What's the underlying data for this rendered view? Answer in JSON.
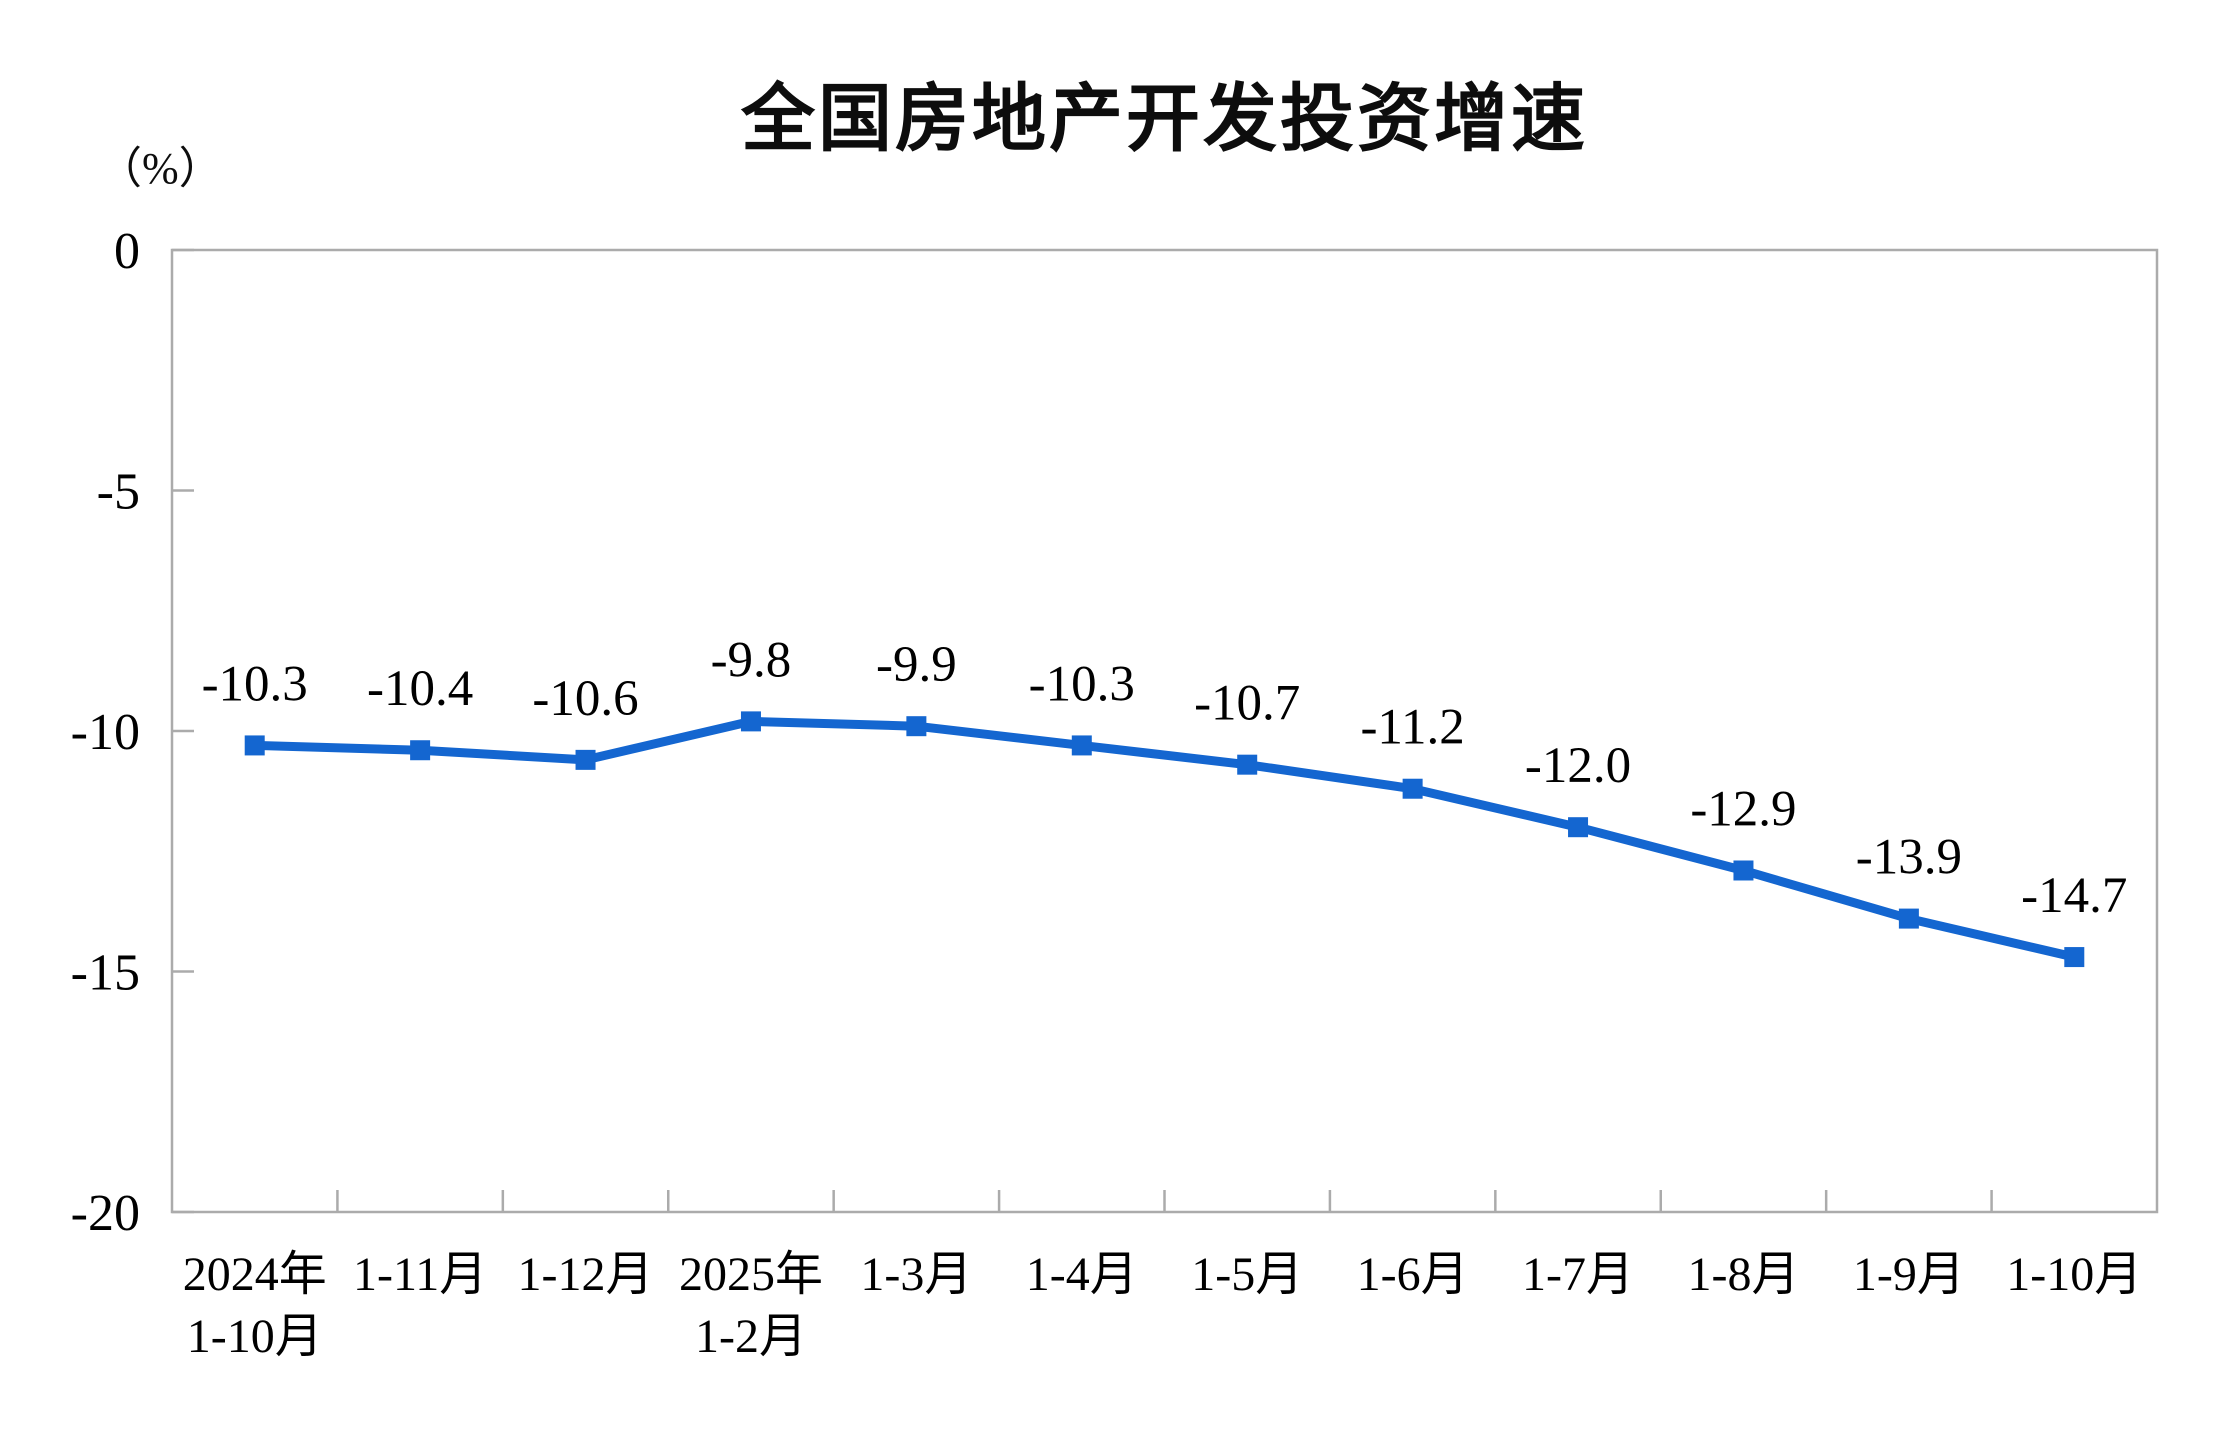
{
  "page": {
    "title": "全国房地产开发投资增速",
    "unit_label": "（%）"
  },
  "chart_data": {
    "type": "line",
    "title": "全国房地产开发投资增速",
    "ylabel": "（%）",
    "categories": [
      [
        "2024年",
        "1-10月"
      ],
      [
        "1-11月"
      ],
      [
        "1-12月"
      ],
      [
        "2025年",
        "1-2月"
      ],
      [
        "1-3月"
      ],
      [
        "1-4月"
      ],
      [
        "1-5月"
      ],
      [
        "1-6月"
      ],
      [
        "1-7月"
      ],
      [
        "1-8月"
      ],
      [
        "1-9月"
      ],
      [
        "1-10月"
      ]
    ],
    "values": [
      -10.3,
      -10.4,
      -10.6,
      -9.8,
      -9.9,
      -10.3,
      -10.7,
      -11.2,
      -12.0,
      -12.9,
      -13.9,
      -14.7
    ],
    "point_labels": [
      "-10.3",
      "-10.4",
      "-10.6",
      "-9.8",
      "-9.9",
      "-10.3",
      "-10.7",
      "-11.2",
      "-12.0",
      "-12.9",
      "-13.9",
      "-14.7"
    ],
    "y_ticks": [
      0,
      -5,
      -10,
      -15,
      -20
    ],
    "ylim": [
      -20,
      0
    ],
    "grid": false,
    "legend": false,
    "line_color": "#1466d0",
    "marker": "square",
    "axis_color": "#ababab",
    "text_color": "#000000"
  }
}
